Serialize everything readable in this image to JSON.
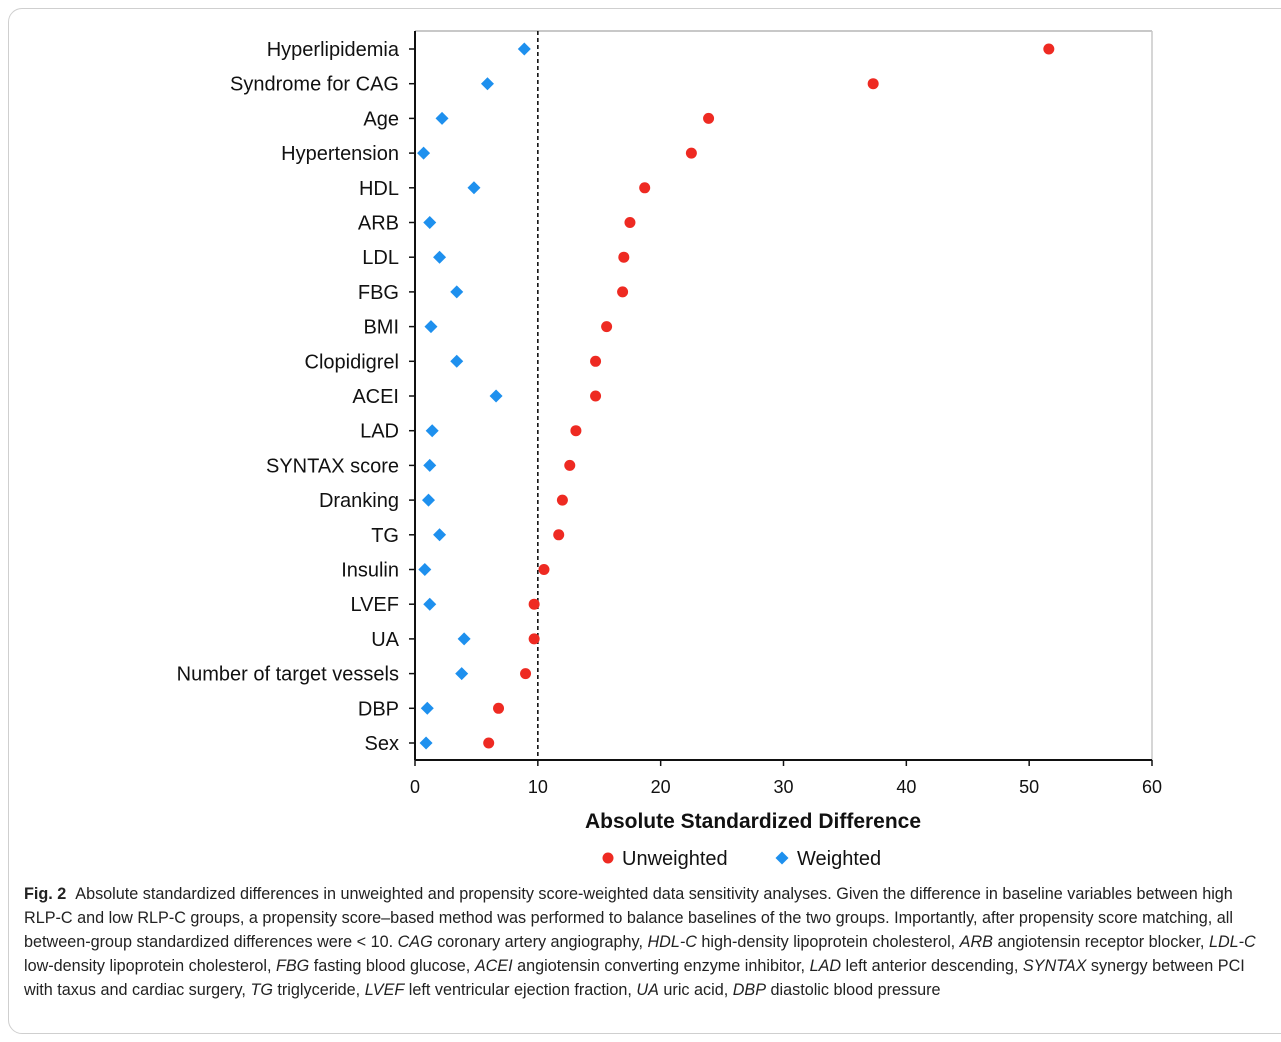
{
  "chart_data": {
    "type": "scatter",
    "orientation": "horizontal",
    "categories": [
      "Hyperlipidemia",
      "Syndrome for CAG",
      "Age",
      "Hypertension",
      "HDL",
      "ARB",
      "LDL",
      "FBG",
      "BMI",
      "Clopidigrel",
      "ACEI",
      "LAD",
      "SYNTAX score",
      "Dranking",
      "TG",
      "Insulin",
      "LVEF",
      "UA",
      "Number of target vessels",
      "DBP",
      "Sex"
    ],
    "series": [
      {
        "name": "Unweighted",
        "marker": "circle",
        "color": "#ee2a22",
        "values": [
          51.6,
          37.3,
          23.9,
          22.5,
          18.7,
          17.5,
          17.0,
          16.9,
          15.6,
          14.7,
          14.7,
          13.1,
          12.6,
          12.0,
          11.7,
          10.5,
          9.7,
          9.7,
          9.0,
          6.8,
          6.0
        ]
      },
      {
        "name": "Weighted",
        "marker": "diamond",
        "color": "#1e90ee",
        "values": [
          8.9,
          5.9,
          2.2,
          0.7,
          4.8,
          1.2,
          2.0,
          3.4,
          1.3,
          3.4,
          6.6,
          1.4,
          1.2,
          1.1,
          2.0,
          0.8,
          1.2,
          4.0,
          3.8,
          1.0,
          0.9
        ]
      }
    ],
    "xlabel": "Absolute Standardized Difference",
    "xlim": [
      0,
      60
    ],
    "xticks": [
      0,
      10,
      20,
      30,
      40,
      50,
      60
    ],
    "reference_line": 10,
    "legend_position": "bottom"
  },
  "caption": {
    "label": "Fig. 2",
    "text": "Absolute standardized differences in unweighted and propensity score-weighted data sensitivity analyses. Given the difference in baseline variables between high RLP-C and low RLP-C groups, a propensity score–based method was performed to balance baselines of the two groups. Importantly, after propensity score matching, all between-group standardized differences were < 10.",
    "abbreviations": [
      {
        "abbr": "CAG",
        "def": "coronary artery angiography"
      },
      {
        "abbr": "HDL-C",
        "def": "high-density lipoprotein cholesterol"
      },
      {
        "abbr": "ARB",
        "def": "angiotensin receptor blocker"
      },
      {
        "abbr": "LDL-C",
        "def": "low-density lipoprotein cholesterol"
      },
      {
        "abbr": "FBG",
        "def": "fasting blood glucose"
      },
      {
        "abbr": "ACEI",
        "def": "angiotensin converting enzyme inhibitor"
      },
      {
        "abbr": "LAD",
        "def": "left anterior descending"
      },
      {
        "abbr": "SYNTAX",
        "def": "synergy between PCI with taxus and cardiac surgery"
      },
      {
        "abbr": "TG",
        "def": "triglyceride"
      },
      {
        "abbr": "LVEF",
        "def": "left ventricular ejection fraction"
      },
      {
        "abbr": "UA",
        "def": "uric acid"
      },
      {
        "abbr": "DBP",
        "def": "diastolic blood pressure"
      }
    ]
  }
}
